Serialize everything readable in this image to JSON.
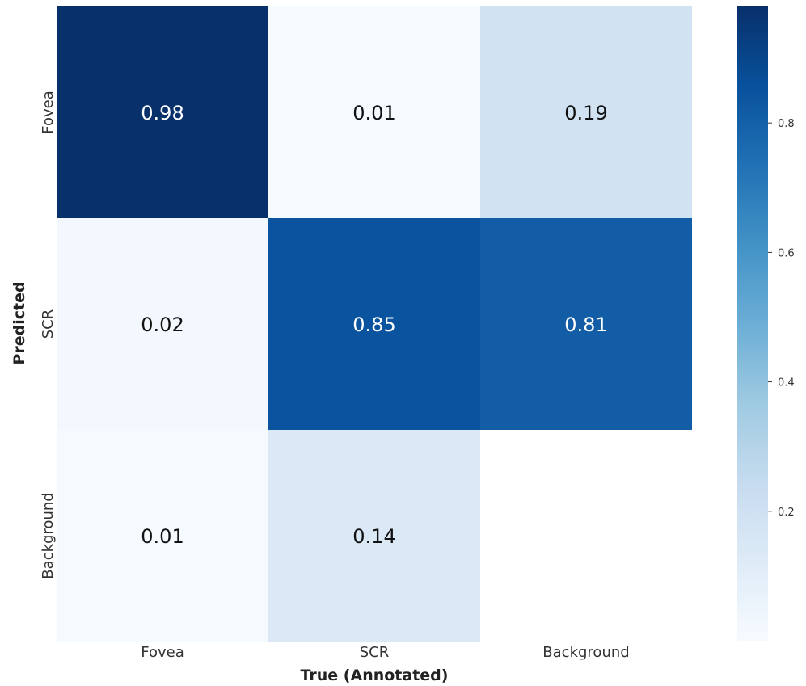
{
  "chart_data": {
    "type": "heatmap",
    "title": "",
    "xlabel": "True (Annotated)",
    "ylabel": "Predicted",
    "x_categories": [
      "Fovea",
      "SCR",
      "Background"
    ],
    "y_categories": [
      "Fovea",
      "SCR",
      "Background"
    ],
    "values": [
      [
        0.98,
        0.01,
        0.19
      ],
      [
        0.02,
        0.85,
        0.81
      ],
      [
        0.01,
        0.14,
        null
      ]
    ],
    "cell_labels": [
      [
        "0.98",
        "0.01",
        "0.19"
      ],
      [
        "0.02",
        "0.85",
        "0.81"
      ],
      [
        "0.01",
        "0.14",
        ""
      ]
    ],
    "colormap": "Blues",
    "colorbar": {
      "range": [
        0,
        0.98
      ],
      "ticks": [
        0.2,
        0.4,
        0.6,
        0.8
      ],
      "tick_labels": [
        "0.2",
        "0.4",
        "0.6",
        "0.8"
      ]
    },
    "colors": {
      "low": "#f7fbff",
      "high": "#08306b",
      "text_dark": "#111111",
      "text_light": "#ffffff"
    },
    "legend": "colorbar right",
    "grid": false
  }
}
